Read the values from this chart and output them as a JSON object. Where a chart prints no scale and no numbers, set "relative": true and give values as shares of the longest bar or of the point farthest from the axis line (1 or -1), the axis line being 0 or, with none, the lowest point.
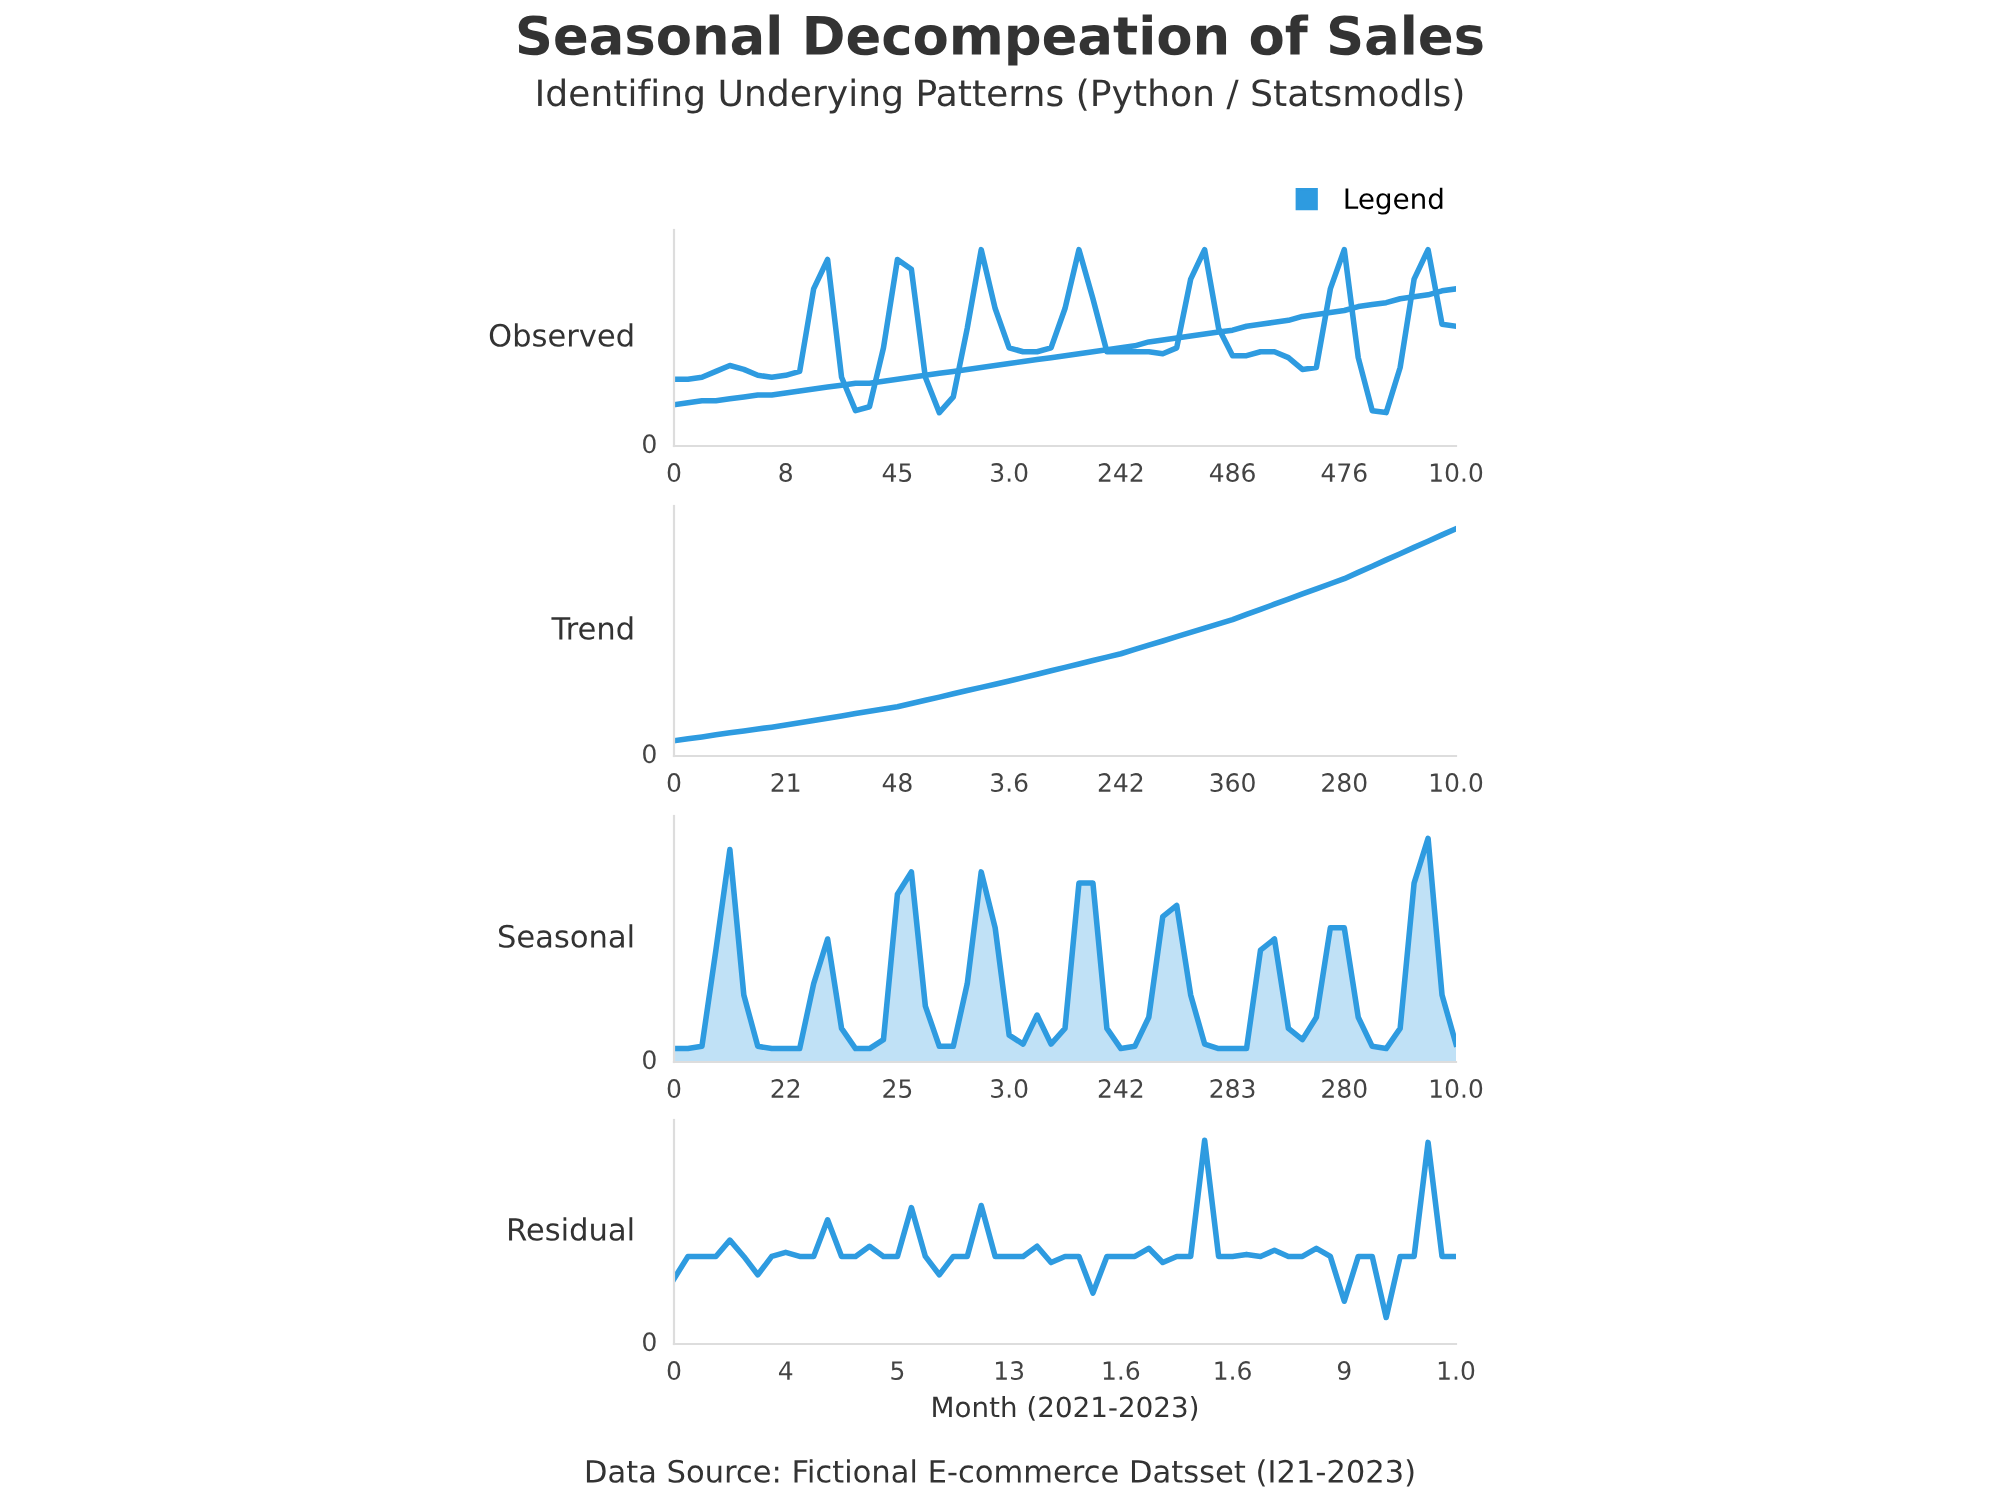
{
  "chart_data": [
    {
      "type": "line",
      "title": "Seasonal Decompeation of Sales",
      "subtitle": "Identifing Underying Patterns (Python / Statsmodls)",
      "ylabel": "Observed",
      "relative": true,
      "annotations": [
        "0"
      ],
      "legend": "top right",
      "line_style": "solid",
      "categories": [
        "0",
        null,
        null,
        null,
        null,
        null,
        null,
        null,
        "8",
        null,
        null,
        null,
        null,
        null,
        null,
        null,
        "45",
        null,
        null,
        null,
        null,
        null,
        null,
        null,
        "3.0",
        null,
        null,
        null,
        null,
        null,
        null,
        null,
        "242",
        null,
        null,
        null,
        null,
        null,
        null,
        null,
        "486",
        null,
        null,
        null,
        null,
        null,
        null,
        null,
        "476",
        null,
        null,
        null,
        null,
        null,
        null,
        null,
        "10.0"
      ],
      "series": [
        {
          "name": "Legend",
          "color": "#2e9be0",
          "values": [
            0.34,
            0.34,
            0.35,
            0.38,
            0.41,
            0.39,
            0.36,
            0.35,
            0.36,
            0.38,
            0.8,
            0.95,
            0.35,
            0.18,
            0.2,
            0.5,
            0.95,
            0.9,
            0.35,
            0.17,
            0.25,
            0.6,
            1.0,
            0.7,
            0.5,
            0.48,
            0.48,
            0.5,
            0.7,
            1.0,
            0.75,
            0.48,
            0.48,
            0.48,
            0.48,
            0.47,
            0.5,
            0.85,
            1.0,
            0.6,
            0.46,
            0.46,
            0.48,
            0.48,
            0.45,
            0.39,
            0.4,
            0.8,
            1.0,
            0.45,
            0.18,
            0.17,
            0.4,
            0.85,
            1.0,
            0.62,
            0.61
          ]
        },
        {
          "color": "#2e9be0",
          "values": [
            0.21,
            0.22,
            0.23,
            0.23,
            0.24,
            0.25,
            0.26,
            0.26,
            0.27,
            0.28,
            0.29,
            0.3,
            0.31,
            0.32,
            0.32,
            0.33,
            0.34,
            0.35,
            0.36,
            0.37,
            0.38,
            0.39,
            0.4,
            0.41,
            0.42,
            0.43,
            0.44,
            0.45,
            0.46,
            0.47,
            0.48,
            0.49,
            0.5,
            0.51,
            0.53,
            0.54,
            0.55,
            0.56,
            0.57,
            0.58,
            0.59,
            0.61,
            0.62,
            0.63,
            0.64,
            0.66,
            0.67,
            0.68,
            0.69,
            0.71,
            0.72,
            0.73,
            0.75,
            0.76,
            0.77,
            0.79,
            0.8
          ]
        }
      ]
    },
    {
      "type": "line",
      "ylabel": "Trend",
      "relative": true,
      "annotations": [
        "0"
      ],
      "line_style": "solid",
      "categories": [
        "0",
        null,
        null,
        null,
        null,
        null,
        null,
        null,
        "21",
        null,
        null,
        null,
        null,
        null,
        null,
        null,
        "48",
        null,
        null,
        null,
        null,
        null,
        null,
        null,
        "3.6",
        null,
        null,
        null,
        null,
        null,
        null,
        null,
        "242",
        null,
        null,
        null,
        null,
        null,
        null,
        null,
        "360",
        null,
        null,
        null,
        null,
        null,
        null,
        null,
        "280",
        null,
        null,
        null,
        null,
        null,
        null,
        null,
        "10.0"
      ],
      "series": [
        {
          "color": "#2e9be0",
          "values": [
            0.067,
            0.076,
            0.084,
            0.093,
            0.102,
            0.11,
            0.119,
            0.127,
            0.136,
            0.146,
            0.156,
            0.166,
            0.176,
            0.187,
            0.197,
            0.207,
            0.217,
            0.231,
            0.245,
            0.259,
            0.274,
            0.288,
            0.302,
            0.316,
            0.33,
            0.345,
            0.36,
            0.375,
            0.39,
            0.405,
            0.42,
            0.435,
            0.45,
            0.469,
            0.488,
            0.506,
            0.525,
            0.544,
            0.563,
            0.581,
            0.6,
            0.623,
            0.645,
            0.668,
            0.69,
            0.713,
            0.735,
            0.758,
            0.78,
            0.808,
            0.835,
            0.863,
            0.89,
            0.918,
            0.945,
            0.973,
            1.0
          ]
        }
      ]
    },
    {
      "type": "area",
      "ylabel": "Seasonal",
      "relative": true,
      "annotations": [
        "0"
      ],
      "line_style": "solid",
      "categories": [
        "0",
        null,
        null,
        null,
        null,
        null,
        null,
        null,
        "22",
        null,
        null,
        null,
        null,
        null,
        null,
        null,
        "25",
        null,
        null,
        null,
        null,
        null,
        null,
        null,
        "3.0",
        null,
        null,
        null,
        null,
        null,
        null,
        null,
        "242",
        null,
        null,
        null,
        null,
        null,
        null,
        null,
        "283",
        null,
        null,
        null,
        null,
        null,
        null,
        null,
        "280",
        null,
        null,
        null,
        null,
        null,
        null,
        null,
        "10.0"
      ],
      "series": [
        {
          "color": "#2e9be0",
          "values": [
            0.06,
            0.06,
            0.07,
            0.5,
            0.95,
            0.3,
            0.07,
            0.06,
            0.06,
            0.06,
            0.35,
            0.55,
            0.15,
            0.06,
            0.06,
            0.1,
            0.75,
            0.85,
            0.25,
            0.07,
            0.07,
            0.35,
            0.85,
            0.6,
            0.12,
            0.08,
            0.21,
            0.08,
            0.15,
            0.8,
            0.8,
            0.15,
            0.06,
            0.07,
            0.2,
            0.65,
            0.7,
            0.3,
            0.08,
            0.06,
            0.06,
            0.06,
            0.5,
            0.55,
            0.15,
            0.1,
            0.2,
            0.6,
            0.6,
            0.2,
            0.07,
            0.06,
            0.15,
            0.8,
            1.0,
            0.3,
            0.08
          ]
        }
      ]
    },
    {
      "type": "line",
      "ylabel": "Residual",
      "xlabel": "Month (2021-2023)",
      "relative": true,
      "line_style": "solid",
      "annotations": [
        "0",
        "Data Source: Fictional E-commerce Datsset (I21-2023)"
      ],
      "categories": [
        "0",
        null,
        null,
        null,
        null,
        null,
        null,
        null,
        "4",
        null,
        null,
        null,
        null,
        null,
        null,
        null,
        "5",
        null,
        null,
        null,
        null,
        null,
        null,
        null,
        "13",
        null,
        null,
        null,
        null,
        null,
        null,
        null,
        "1.6",
        null,
        null,
        null,
        null,
        null,
        null,
        null,
        "1.6",
        null,
        null,
        null,
        null,
        null,
        null,
        null,
        "9",
        null,
        null,
        null,
        null,
        null,
        null,
        null,
        "1.0"
      ],
      "series": [
        {
          "color": "#2e9be0",
          "values": [
            0.32,
            0.43,
            0.43,
            0.43,
            0.51,
            0.43,
            0.34,
            0.43,
            0.45,
            0.43,
            0.43,
            0.61,
            0.43,
            0.43,
            0.48,
            0.43,
            0.43,
            0.67,
            0.43,
            0.34,
            0.43,
            0.43,
            0.68,
            0.43,
            0.43,
            0.43,
            0.48,
            0.4,
            0.43,
            0.43,
            0.25,
            0.43,
            0.43,
            0.43,
            0.47,
            0.4,
            0.43,
            0.43,
            1.0,
            0.43,
            0.43,
            0.44,
            0.43,
            0.46,
            0.43,
            0.43,
            0.47,
            0.43,
            0.21,
            0.43,
            0.43,
            0.13,
            0.43,
            0.43,
            0.99,
            0.43,
            0.43
          ]
        }
      ]
    }
  ]
}
